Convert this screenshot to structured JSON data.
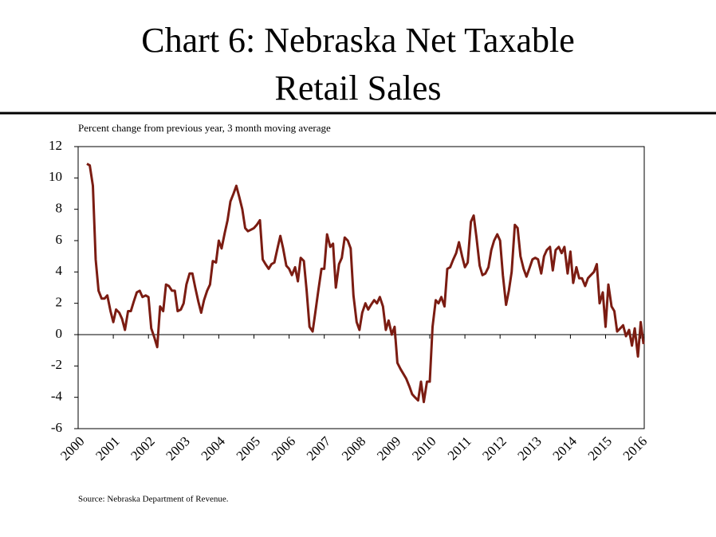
{
  "chart_data": {
    "type": "line",
    "title": "Chart 6: Nebraska Net Taxable",
    "title_line2": "Retail Sales",
    "subtitle": "Percent change from previous year, 3 month moving average",
    "source": "Source: Nebraska Department of Revenue.",
    "xlim": [
      2000,
      2016.1
    ],
    "xticks": [
      2000,
      2001,
      2002,
      2003,
      2004,
      2005,
      2006,
      2007,
      2008,
      2009,
      2010,
      2011,
      2012,
      2013,
      2014,
      2015,
      2016
    ],
    "ylim": [
      -6,
      12
    ],
    "yticks": [
      -6,
      -4,
      -2,
      0,
      2,
      4,
      6,
      8,
      10,
      12
    ],
    "series": [
      {
        "color": "#7b1c12",
        "x": [
          2000.25,
          2000.33,
          2000.42,
          2000.5,
          2000.58,
          2000.67,
          2000.75,
          2000.83,
          2000.92,
          2001,
          2001.08,
          2001.17,
          2001.25,
          2001.33,
          2001.42,
          2001.5,
          2001.58,
          2001.67,
          2001.75,
          2001.83,
          2001.92,
          2002,
          2002.08,
          2002.17,
          2002.25,
          2002.33,
          2002.42,
          2002.5,
          2002.58,
          2002.67,
          2002.75,
          2002.83,
          2002.92,
          2003,
          2003.08,
          2003.17,
          2003.25,
          2003.33,
          2003.42,
          2003.5,
          2003.58,
          2003.67,
          2003.75,
          2003.83,
          2003.92,
          2004,
          2004.08,
          2004.17,
          2004.25,
          2004.33,
          2004.42,
          2004.5,
          2004.58,
          2004.67,
          2004.75,
          2004.83,
          2004.92,
          2005,
          2005.08,
          2005.17,
          2005.25,
          2005.33,
          2005.42,
          2005.5,
          2005.58,
          2005.67,
          2005.75,
          2005.83,
          2005.92,
          2006,
          2006.08,
          2006.17,
          2006.25,
          2006.33,
          2006.42,
          2006.5,
          2006.58,
          2006.67,
          2006.75,
          2006.83,
          2006.92,
          2007,
          2007.08,
          2007.17,
          2007.25,
          2007.33,
          2007.42,
          2007.5,
          2007.58,
          2007.67,
          2007.75,
          2007.83,
          2007.92,
          2008,
          2008.08,
          2008.17,
          2008.25,
          2008.33,
          2008.42,
          2008.5,
          2008.58,
          2008.67,
          2008.75,
          2008.83,
          2008.92,
          2009,
          2009.08,
          2009.17,
          2009.25,
          2009.33,
          2009.42,
          2009.5,
          2009.58,
          2009.67,
          2009.75,
          2009.83,
          2009.92,
          2010,
          2010.08,
          2010.17,
          2010.25,
          2010.33,
          2010.42,
          2010.5,
          2010.58,
          2010.67,
          2010.75,
          2010.83,
          2010.92,
          2011,
          2011.08,
          2011.17,
          2011.25,
          2011.33,
          2011.42,
          2011.5,
          2011.58,
          2011.67,
          2011.75,
          2011.83,
          2011.92,
          2012,
          2012.08,
          2012.17,
          2012.25,
          2012.33,
          2012.42,
          2012.5,
          2012.58,
          2012.67,
          2012.75,
          2012.83,
          2012.92,
          2013,
          2013.08,
          2013.17,
          2013.25,
          2013.33,
          2013.42,
          2013.5,
          2013.58,
          2013.67,
          2013.75,
          2013.83,
          2013.92,
          2014,
          2014.08,
          2014.17,
          2014.25,
          2014.33,
          2014.42,
          2014.5,
          2014.58,
          2014.67,
          2014.75,
          2014.83,
          2014.92,
          2015,
          2015.08,
          2015.17,
          2015.25,
          2015.33,
          2015.42,
          2015.5,
          2015.58,
          2015.67,
          2015.75,
          2015.83,
          2015.92,
          2016,
          2016.08
        ],
        "values": [
          10.9,
          10.8,
          9.5,
          4.8,
          2.8,
          2.3,
          2.3,
          2.5,
          1.5,
          0.8,
          1.6,
          1.4,
          1.0,
          0.3,
          1.5,
          1.5,
          2.1,
          2.7,
          2.8,
          2.4,
          2.5,
          2.4,
          0.4,
          -0.2,
          -0.8,
          1.8,
          1.5,
          3.2,
          3.1,
          2.8,
          2.8,
          1.5,
          1.6,
          2.0,
          3.2,
          3.9,
          3.9,
          3.0,
          2.1,
          1.4,
          2.2,
          2.8,
          3.2,
          4.7,
          4.6,
          6.0,
          5.5,
          6.5,
          7.3,
          8.5,
          9.0,
          9.5,
          8.8,
          8.0,
          6.8,
          6.6,
          6.7,
          6.8,
          7.0,
          7.3,
          4.8,
          4.5,
          4.2,
          4.5,
          4.6,
          5.5,
          6.3,
          5.5,
          4.4,
          4.2,
          3.8,
          4.3,
          3.4,
          4.9,
          4.7,
          2.8,
          0.5,
          0.2,
          1.5,
          2.8,
          4.2,
          4.2,
          6.4,
          5.6,
          5.8,
          3.0,
          4.5,
          4.9,
          6.2,
          6.0,
          5.5,
          2.5,
          0.8,
          0.3,
          1.4,
          2.0,
          1.6,
          1.9,
          2.2,
          2.0,
          2.4,
          1.8,
          0.3,
          0.9,
          0.0,
          0.5,
          -1.8,
          -2.2,
          -2.5,
          -2.8,
          -3.3,
          -3.8,
          -4.0,
          -4.2,
          -3.0,
          -4.3,
          -3.0,
          -3.0,
          0.5,
          2.2,
          2.0,
          2.4,
          1.8,
          4.2,
          4.3,
          4.8,
          5.2,
          5.9,
          5.0,
          4.3,
          4.6,
          7.2,
          7.6,
          6.2,
          4.4,
          3.8,
          3.9,
          4.3,
          5.4,
          6.0,
          6.4,
          6.0,
          3.8,
          1.9,
          2.8,
          4.0,
          7.0,
          6.8,
          5.0,
          4.2,
          3.7,
          4.2,
          4.8,
          4.9,
          4.8,
          3.9,
          5.0,
          5.4,
          5.6,
          4.1,
          5.4,
          5.6,
          5.2,
          5.6,
          3.9,
          5.3,
          3.3,
          4.3,
          3.6,
          3.6,
          3.1,
          3.6,
          3.8,
          4.0,
          4.5,
          2.0,
          2.7,
          0.5,
          3.2,
          1.8,
          1.5,
          0.2,
          0.4,
          0.6,
          -0.1,
          0.3,
          -0.7,
          0.4,
          -1.4,
          0.8,
          -0.6
        ]
      }
    ]
  }
}
